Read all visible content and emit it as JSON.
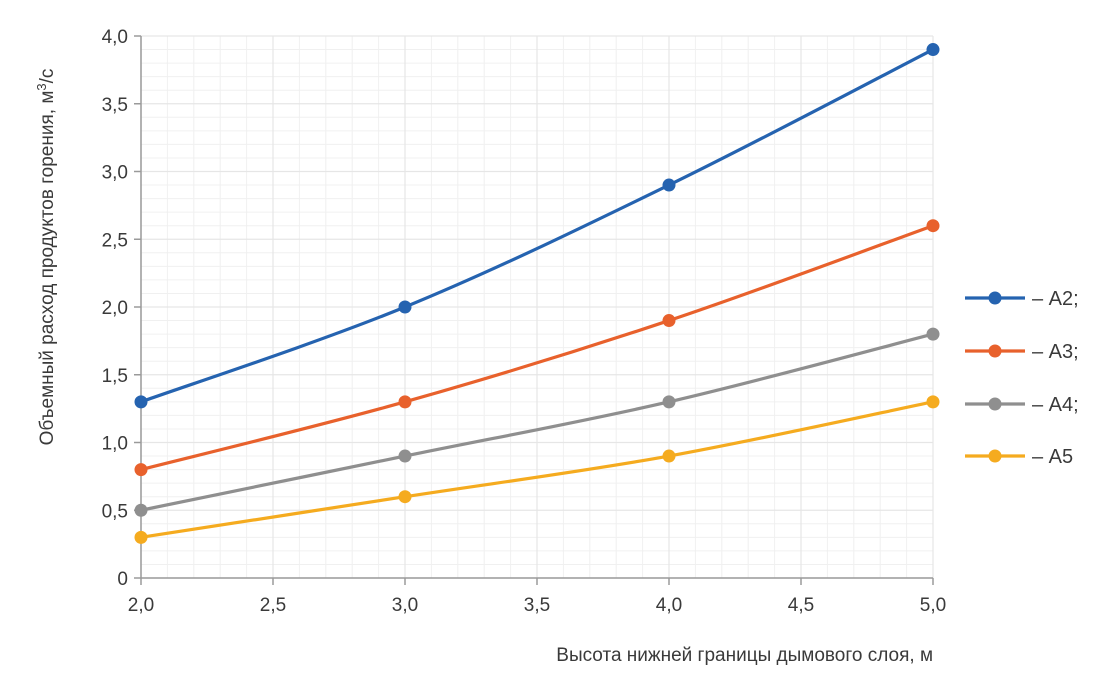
{
  "chart_data": {
    "type": "line",
    "x": [
      2.0,
      3.0,
      4.0,
      5.0
    ],
    "series": [
      {
        "name": "– А2;",
        "values": [
          1.3,
          2.0,
          2.9,
          3.9
        ],
        "color": "#2563b0"
      },
      {
        "name": "– А3;",
        "values": [
          0.8,
          1.3,
          1.9,
          2.6
        ],
        "color": "#e8612c"
      },
      {
        "name": "– А4;",
        "values": [
          0.5,
          0.9,
          1.3,
          1.8
        ],
        "color": "#8f8f8f"
      },
      {
        "name": "– А5",
        "values": [
          0.3,
          0.6,
          0.9,
          1.3
        ],
        "color": "#f5ab1f"
      }
    ],
    "xlabel": "Высота нижней границы дымового слоя, м",
    "ylabel_main": "Объемный расход продуктов горения, м",
    "ylabel_sup": "3",
    "ylabel_tail": "/с",
    "xlim": [
      2.0,
      5.0
    ],
    "ylim": [
      0,
      4.0
    ],
    "x_ticks": [
      2.0,
      2.5,
      3.0,
      3.5,
      4.0,
      4.5,
      5.0
    ],
    "x_tick_labels": [
      "2,0",
      "2,5",
      "3,0",
      "3,5",
      "4,0",
      "4,5",
      "5,0"
    ],
    "y_ticks": [
      0,
      0.5,
      1.0,
      1.5,
      2.0,
      2.5,
      3.0,
      3.5,
      4.0
    ],
    "y_tick_labels": [
      "0",
      "0,5",
      "1,0",
      "1,5",
      "2,0",
      "2,5",
      "3,0",
      "3,5",
      "4,0"
    ],
    "grid": true,
    "minor_grid_per_major": 5,
    "legend_position": "right",
    "grid_color": "#e6e6e6",
    "axis_color": "#9a9a9a"
  }
}
